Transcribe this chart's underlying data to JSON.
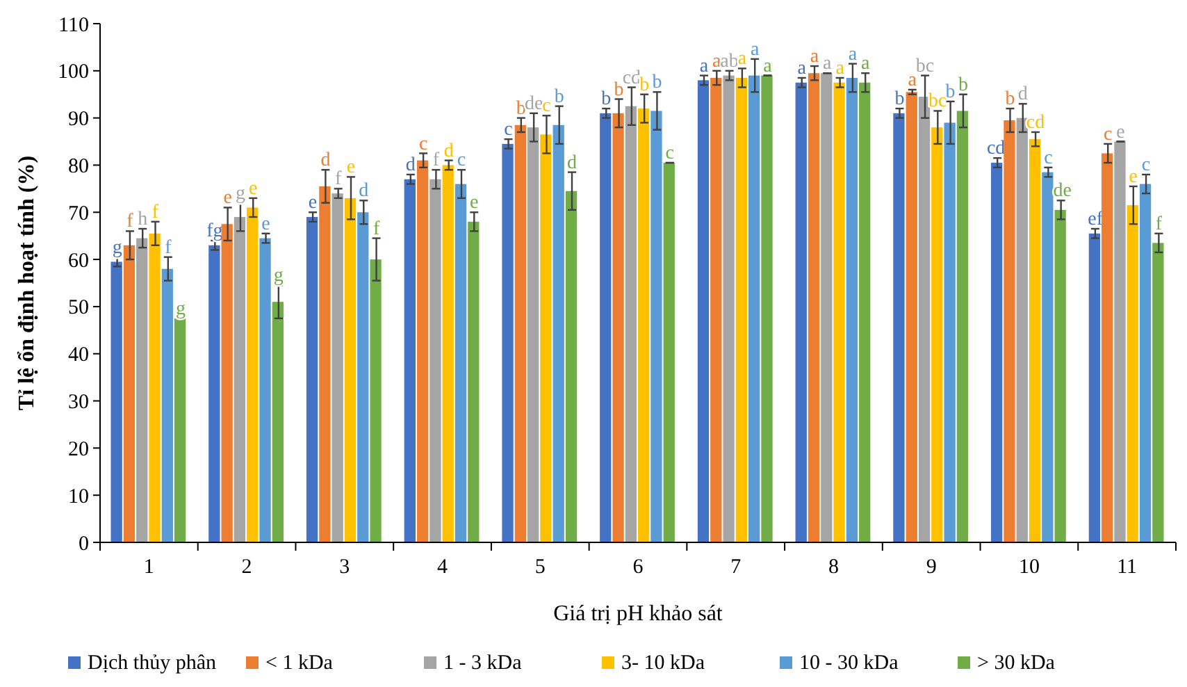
{
  "chart_data": {
    "type": "bar",
    "xlabel": "Giá trị pH khảo sát",
    "ylabel": "Tỉ lệ ổn định hoạt tính (%)",
    "categories": [
      "1",
      "2",
      "3",
      "4",
      "5",
      "6",
      "7",
      "8",
      "9",
      "10",
      "11"
    ],
    "ylim": [
      0,
      110
    ],
    "yticks": [
      0,
      10,
      20,
      30,
      40,
      50,
      60,
      70,
      80,
      90,
      100,
      110
    ],
    "grid": false,
    "legend": "bottom",
    "series": [
      {
        "name": "Dịch thủy phân",
        "color": "#4472c4",
        "values": [
          59.5,
          63,
          69,
          77,
          84.5,
          91,
          98,
          97.5,
          91,
          80.5,
          65.5
        ],
        "errors": [
          1,
          1,
          1,
          1,
          1,
          1,
          1,
          1,
          1,
          1,
          1
        ],
        "value_labels": [
          "g",
          "fg",
          "e",
          "d",
          "c",
          "b",
          "a",
          "a",
          "b",
          "cd",
          "ef"
        ]
      },
      {
        "name": "< 1 kDa",
        "color": "#ed7d31",
        "values": [
          63,
          67.5,
          75.5,
          81,
          88.5,
          91,
          98.5,
          99.5,
          95.5,
          89.5,
          82.5
        ],
        "errors": [
          3,
          3.5,
          3.5,
          1.5,
          1.5,
          3,
          1.5,
          1.5,
          0.5,
          2.5,
          2
        ],
        "value_labels": [
          "f",
          "e",
          "d",
          "c",
          "b",
          "b",
          "a",
          "a",
          "a",
          "b",
          "c"
        ]
      },
      {
        "name": "1 - 3 kDa",
        "color": "#a5a5a5",
        "values": [
          64.5,
          69,
          74,
          77,
          88,
          92.5,
          99,
          99.5,
          94.5,
          90,
          85
        ],
        "errors": [
          2,
          3,
          1,
          2,
          3,
          4,
          1,
          0,
          4.5,
          3,
          0
        ],
        "value_labels": [
          "h",
          "g",
          "f",
          "f",
          "de",
          "cd",
          "ab",
          "a",
          "bc",
          "d",
          "e"
        ]
      },
      {
        "name": "3- 10 kDa",
        "color": "#ffc000",
        "values": [
          65.5,
          71,
          73,
          80,
          86.5,
          92,
          98.5,
          97.5,
          88,
          85.5,
          71.5
        ],
        "errors": [
          2.5,
          2,
          4.5,
          1,
          4,
          3,
          2,
          1,
          3.5,
          1.5,
          4
        ],
        "value_labels": [
          "f",
          "e",
          "e",
          "d",
          "c",
          "b",
          "a",
          "a",
          "bc",
          "cd",
          "e"
        ]
      },
      {
        "name": "10 - 30 kDa",
        "color": "#5b9bd5",
        "values": [
          58,
          64.5,
          70,
          76,
          88.5,
          91.5,
          99,
          98.5,
          89,
          78.5,
          76
        ],
        "errors": [
          2.5,
          1,
          2.5,
          3,
          4,
          4,
          3.5,
          3,
          4.5,
          1,
          2
        ],
        "value_labels": [
          "f",
          "e",
          "d",
          "c",
          "b",
          "b",
          "a",
          "a",
          "b",
          "c",
          "c"
        ]
      },
      {
        "name": "> 30 kDa",
        "color": "#70ad47",
        "values": [
          47.5,
          51,
          60,
          68,
          74.5,
          80.5,
          99,
          97.5,
          91.5,
          70.5,
          63.5
        ],
        "errors": [
          0,
          3.5,
          4.5,
          2,
          4,
          0,
          0,
          2,
          3.5,
          2,
          2
        ],
        "value_labels": [
          "g",
          "g",
          "f",
          "e",
          "d",
          "c",
          "a",
          "a",
          "b",
          "de",
          "f"
        ]
      }
    ]
  }
}
